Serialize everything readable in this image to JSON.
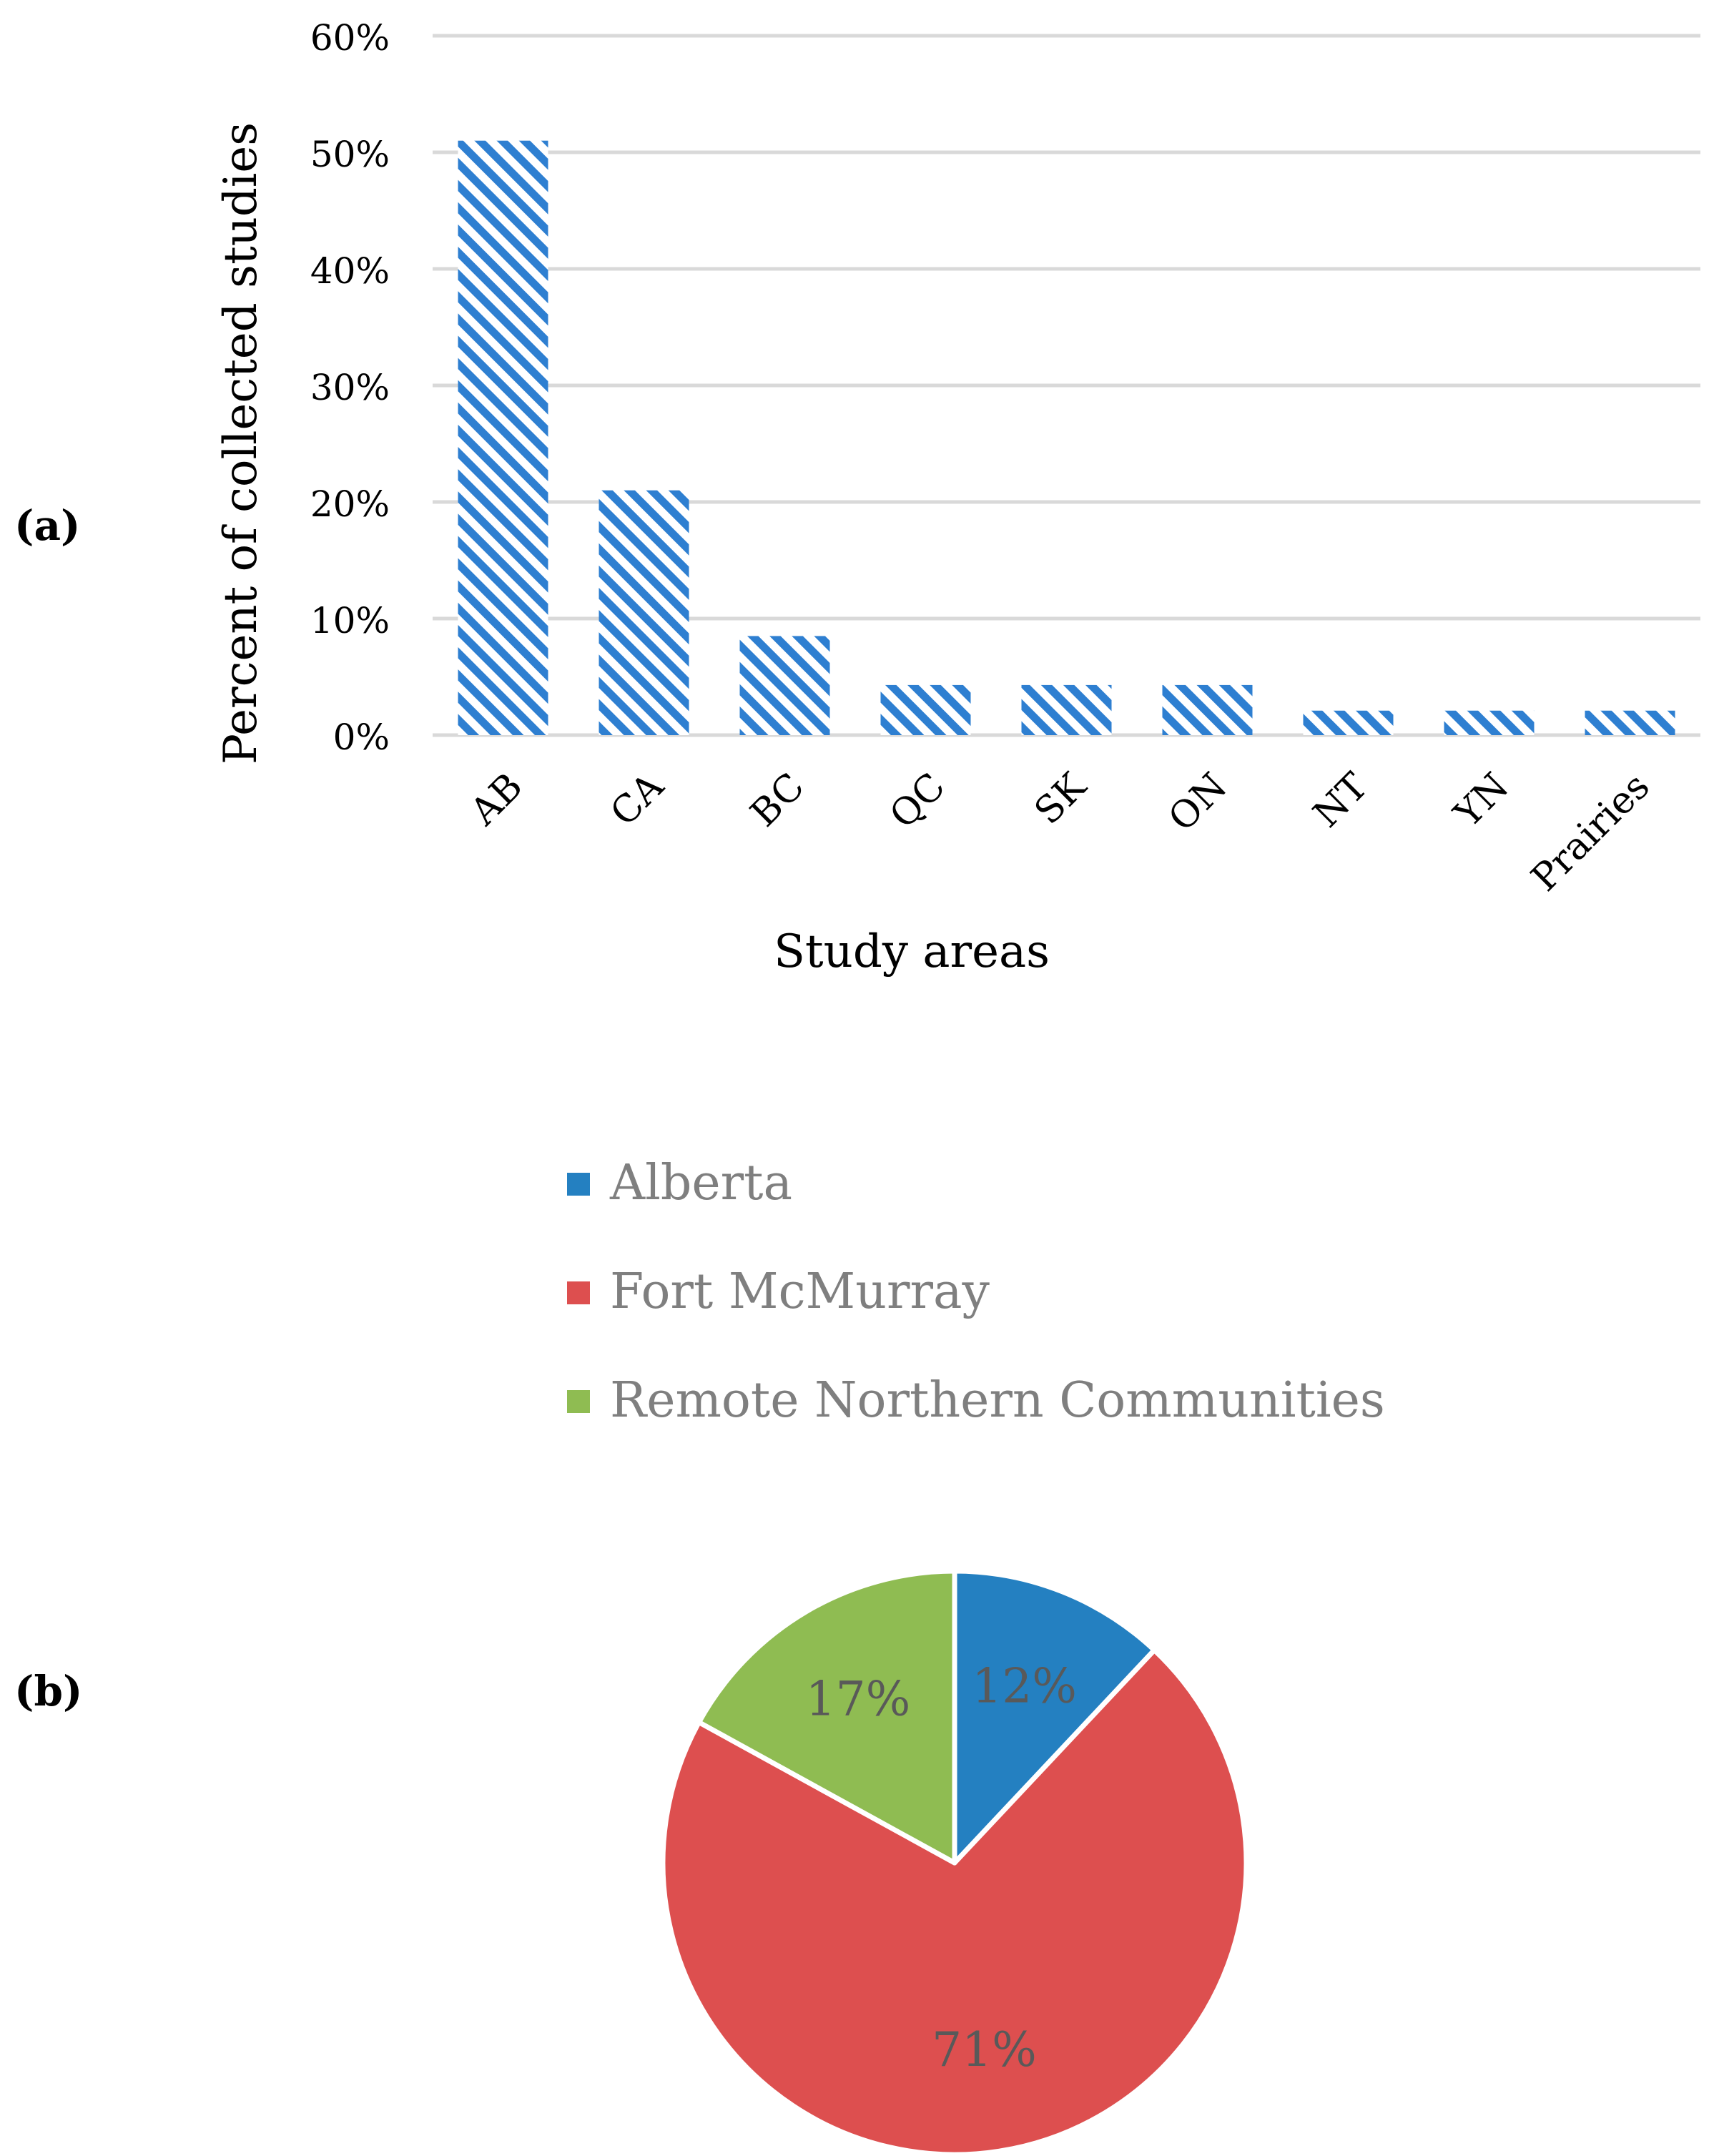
{
  "panel_labels": {
    "a": "(a)",
    "b": "(b)"
  },
  "chart_data": [
    {
      "type": "bar",
      "title": "",
      "xlabel": "Study areas",
      "ylabel": "Percent of collected studies",
      "categories": [
        "AB",
        "CA",
        "BC",
        "QC",
        "SK",
        "ON",
        "NT",
        "YN",
        "Prairies"
      ],
      "values": [
        51,
        21,
        8.5,
        4.3,
        4.3,
        4.3,
        2.1,
        2.1,
        2.1
      ],
      "yticks": [
        "0%",
        "10%",
        "20%",
        "30%",
        "40%",
        "50%",
        "60%"
      ],
      "ylim": [
        0,
        60
      ],
      "grid": true,
      "bar_color": "#2e7fd1",
      "pattern": "diagonal-stripes"
    },
    {
      "type": "pie",
      "labels": [
        "Alberta",
        "Fort McMurray",
        "Remote Northern Communities"
      ],
      "values": [
        12,
        71,
        17
      ],
      "value_labels": [
        "12%",
        "71%",
        "17%"
      ],
      "colors": [
        "#2480c1",
        "#dd4f4f",
        "#8fbc52"
      ],
      "legend_position": "top"
    }
  ]
}
